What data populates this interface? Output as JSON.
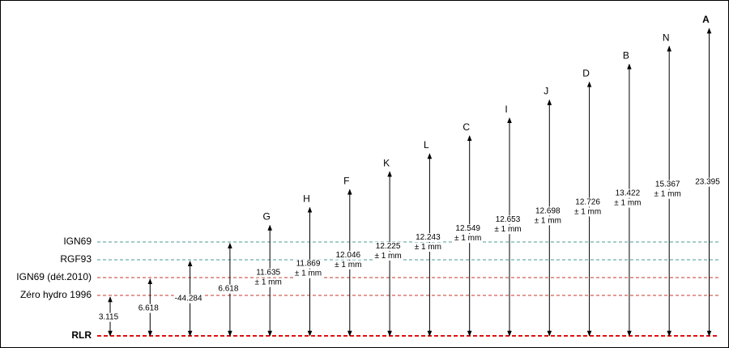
{
  "levels": [
    {
      "label": "IGN69",
      "color": "#4a9a9a"
    },
    {
      "label": "RGF93",
      "color": "#4a9a9a"
    },
    {
      "label": "IGN69 (dét.2010)",
      "color": "#c0392b"
    },
    {
      "label": "Zéro hydro 1996",
      "color": "#c0392b"
    },
    {
      "label": "RLR",
      "color": "#e01010"
    }
  ],
  "arrows": [
    {
      "value": "3.115"
    },
    {
      "value": "6.618"
    },
    {
      "value": "-44.284"
    },
    {
      "value": "6.618"
    },
    {
      "label": "G",
      "value": "11.635",
      "precision": "± 1 mm"
    },
    {
      "label": "H",
      "value": "11.869",
      "precision": "± 1 mm"
    },
    {
      "label": "F",
      "value": "12.046",
      "precision": "± 1 mm"
    },
    {
      "label": "K",
      "value": "12.225",
      "precision": "± 1 mm"
    },
    {
      "label": "L",
      "value": "12.243",
      "precision": "± 1 mm"
    },
    {
      "label": "C",
      "value": "12.549",
      "precision": "± 1 mm"
    },
    {
      "label": "I",
      "value": "12.653",
      "precision": "± 1 mm"
    },
    {
      "label": "J",
      "value": "12.698",
      "precision": "± 1 mm"
    },
    {
      "label": "D",
      "value": "12.726",
      "precision": "± 1 mm"
    },
    {
      "label": "B",
      "value": "13.422",
      "precision": "± 1 mm"
    },
    {
      "label": "N",
      "value": "15.367",
      "precision": "± 1 mm"
    },
    {
      "label": "A",
      "value": "23.395"
    }
  ]
}
